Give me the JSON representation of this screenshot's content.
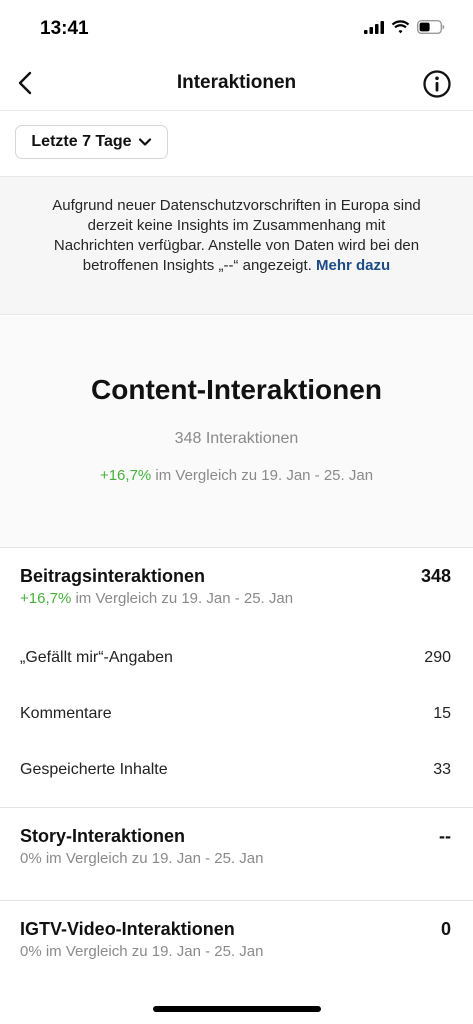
{
  "status_bar": {
    "time": "13:41"
  },
  "nav": {
    "title": "Interaktionen"
  },
  "filter": {
    "label": "Letzte 7 Tage"
  },
  "notice": {
    "text": "Aufgrund neuer Datenschutzvorschriften in Europa sind derzeit keine Insights im Zusammenhang mit Nachrichten verfügbar. Anstelle von Daten wird bei den betroffenen Insights „--“ angezeigt.",
    "link": "Mehr dazu"
  },
  "content": {
    "title": "Content-Interaktionen",
    "count": "348 Interaktionen",
    "change": "+16,7%",
    "compare": " im Vergleich zu 19. Jan - 25. Jan"
  },
  "posts": {
    "title": "Beitragsinteraktionen",
    "value": "348",
    "change": "+16,7%",
    "compare": " im Vergleich zu 19. Jan - 25. Jan",
    "rows": [
      {
        "label": "„Gefällt mir“-Angaben",
        "value": "290"
      },
      {
        "label": "Kommentare",
        "value": "15"
      },
      {
        "label": "Gespeicherte Inhalte",
        "value": "33"
      }
    ]
  },
  "story": {
    "title": "Story-Interaktionen",
    "value": "--",
    "compare": "0% im Vergleich zu 19. Jan - 25. Jan"
  },
  "igtv": {
    "title": "IGTV-Video-Interaktionen",
    "value": "0",
    "compare": "0% im Vergleich zu 19. Jan - 25. Jan"
  },
  "colors": {
    "positive": "#44b13b",
    "link": "#1d4c85",
    "muted": "#8a8a8a"
  },
  "icons": [
    "signal-icon",
    "wifi-icon",
    "battery-icon",
    "back-arrow-icon",
    "info-icon",
    "chevron-down-icon"
  ]
}
